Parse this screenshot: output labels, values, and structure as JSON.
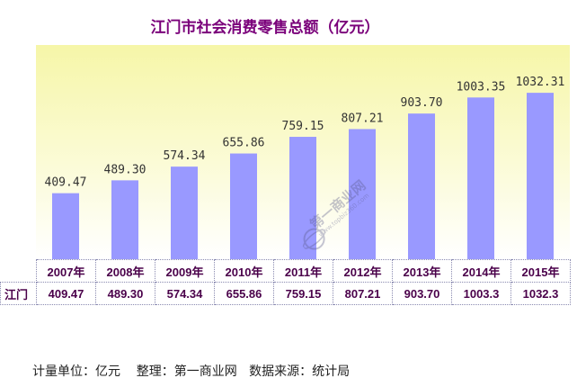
{
  "chart_data": {
    "type": "bar",
    "title": "江门市社会消费零售总额（亿元）",
    "categories": [
      "2007年",
      "2008年",
      "2009年",
      "2010年",
      "2011年",
      "2012年",
      "2013年",
      "2014年",
      "2015年"
    ],
    "series": [
      {
        "name": "江门",
        "values": [
          409.47,
          489.3,
          574.34,
          655.86,
          759.15,
          807.21,
          903.7,
          1003.35,
          1032.31
        ],
        "value_labels": [
          "409.47",
          "489.30",
          "574.34",
          "655.86",
          "759.15",
          "807.21",
          "903.70",
          "1003.35",
          "1032.31"
        ],
        "table_values": [
          "409.47",
          "489.30",
          "574.34",
          "655.86",
          "759.15",
          "807.21",
          "903.70",
          "1003.3",
          "1032.3"
        ]
      }
    ],
    "ylim": [
      0,
      1100
    ],
    "grid": false,
    "legend": "none",
    "bar_color": "#9999ff",
    "title_color": "#7a007a",
    "label_color": "#4a004a"
  },
  "footer": "计量单位：亿元    整理：第一商业网   数据来源：统计局",
  "watermark": {
    "brand": "第一商业网",
    "url": "www.topbiz360.com"
  }
}
